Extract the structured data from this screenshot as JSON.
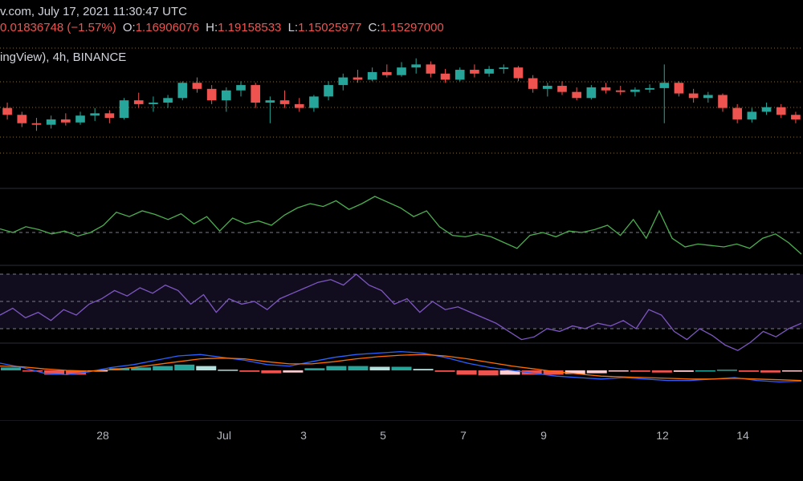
{
  "header": {
    "line1": "v.com, July 17, 2021 11:30:47 UTC",
    "change": "0.01836748 (−1.57%)",
    "o_label": "O:",
    "o_value": "1.16906076",
    "h_label": "H:",
    "h_value": "1.19158533",
    "l_label": "L:",
    "l_value": "1.15025977",
    "c_label": "C:",
    "c_value": "1.15297000",
    "series_info": "ingView), 4h, BINANCE"
  },
  "colors": {
    "background": "#000000",
    "up": "#26a69a",
    "down": "#ef5350",
    "cmf": "#4caf50",
    "rsi": "#7e57c2",
    "rsi_band": "#110d1f",
    "macd": "#2962ff",
    "signal": "#ff6d00",
    "hist_light": "#b2dfdb",
    "hist_pink": "#ffcdd2",
    "price_levels": "#8a6d2a"
  },
  "chart_data": [
    {
      "type": "candlestick",
      "x_ticks": [
        "28",
        "Jul",
        "3",
        "5",
        "7",
        "9",
        "12",
        "14"
      ],
      "price_level_lines": "dotted horizontal levels",
      "candles_sampled": [
        {
          "o": 1.205,
          "h": 1.212,
          "l": 1.19,
          "c": 1.196
        },
        {
          "o": 1.196,
          "h": 1.2,
          "l": 1.18,
          "c": 1.185
        },
        {
          "o": 1.185,
          "h": 1.192,
          "l": 1.175,
          "c": 1.183
        },
        {
          "o": 1.183,
          "h": 1.195,
          "l": 1.178,
          "c": 1.19
        },
        {
          "o": 1.19,
          "h": 1.198,
          "l": 1.182,
          "c": 1.186
        },
        {
          "o": 1.186,
          "h": 1.2,
          "l": 1.183,
          "c": 1.195
        },
        {
          "o": 1.195,
          "h": 1.205,
          "l": 1.188,
          "c": 1.198
        },
        {
          "o": 1.198,
          "h": 1.202,
          "l": 1.185,
          "c": 1.192
        },
        {
          "o": 1.192,
          "h": 1.218,
          "l": 1.19,
          "c": 1.215
        },
        {
          "o": 1.215,
          "h": 1.225,
          "l": 1.205,
          "c": 1.21
        },
        {
          "o": 1.21,
          "h": 1.22,
          "l": 1.2,
          "c": 1.212
        },
        {
          "o": 1.212,
          "h": 1.222,
          "l": 1.205,
          "c": 1.218
        },
        {
          "o": 1.218,
          "h": 1.24,
          "l": 1.215,
          "c": 1.238
        },
        {
          "o": 1.238,
          "h": 1.245,
          "l": 1.225,
          "c": 1.23
        },
        {
          "o": 1.23,
          "h": 1.235,
          "l": 1.21,
          "c": 1.215
        },
        {
          "o": 1.215,
          "h": 1.232,
          "l": 1.2,
          "c": 1.228
        },
        {
          "o": 1.228,
          "h": 1.24,
          "l": 1.22,
          "c": 1.235
        },
        {
          "o": 1.235,
          "h": 1.238,
          "l": 1.205,
          "c": 1.212
        },
        {
          "o": 1.212,
          "h": 1.22,
          "l": 1.185,
          "c": 1.215
        },
        {
          "o": 1.215,
          "h": 1.228,
          "l": 1.205,
          "c": 1.21
        },
        {
          "o": 1.21,
          "h": 1.218,
          "l": 1.2,
          "c": 1.205
        },
        {
          "o": 1.205,
          "h": 1.222,
          "l": 1.2,
          "c": 1.22
        },
        {
          "o": 1.22,
          "h": 1.24,
          "l": 1.215,
          "c": 1.235
        },
        {
          "o": 1.235,
          "h": 1.25,
          "l": 1.228,
          "c": 1.245
        },
        {
          "o": 1.245,
          "h": 1.255,
          "l": 1.238,
          "c": 1.242
        },
        {
          "o": 1.242,
          "h": 1.258,
          "l": 1.24,
          "c": 1.252
        },
        {
          "o": 1.252,
          "h": 1.262,
          "l": 1.245,
          "c": 1.248
        },
        {
          "o": 1.248,
          "h": 1.265,
          "l": 1.246,
          "c": 1.258
        },
        {
          "o": 1.258,
          "h": 1.27,
          "l": 1.25,
          "c": 1.262
        },
        {
          "o": 1.262,
          "h": 1.266,
          "l": 1.245,
          "c": 1.25
        },
        {
          "o": 1.25,
          "h": 1.256,
          "l": 1.238,
          "c": 1.242
        },
        {
          "o": 1.242,
          "h": 1.258,
          "l": 1.24,
          "c": 1.255
        },
        {
          "o": 1.255,
          "h": 1.262,
          "l": 1.245,
          "c": 1.25
        },
        {
          "o": 1.25,
          "h": 1.26,
          "l": 1.246,
          "c": 1.256
        },
        {
          "o": 1.256,
          "h": 1.262,
          "l": 1.25,
          "c": 1.258
        },
        {
          "o": 1.258,
          "h": 1.26,
          "l": 1.24,
          "c": 1.244
        },
        {
          "o": 1.244,
          "h": 1.248,
          "l": 1.225,
          "c": 1.23
        },
        {
          "o": 1.23,
          "h": 1.238,
          "l": 1.22,
          "c": 1.234
        },
        {
          "o": 1.234,
          "h": 1.24,
          "l": 1.222,
          "c": 1.226
        },
        {
          "o": 1.226,
          "h": 1.232,
          "l": 1.215,
          "c": 1.218
        },
        {
          "o": 1.218,
          "h": 1.235,
          "l": 1.216,
          "c": 1.232
        },
        {
          "o": 1.232,
          "h": 1.238,
          "l": 1.224,
          "c": 1.228
        },
        {
          "o": 1.228,
          "h": 1.234,
          "l": 1.222,
          "c": 1.226
        },
        {
          "o": 1.226,
          "h": 1.232,
          "l": 1.22,
          "c": 1.229
        },
        {
          "o": 1.229,
          "h": 1.236,
          "l": 1.225,
          "c": 1.231
        },
        {
          "o": 1.231,
          "h": 1.262,
          "l": 1.185,
          "c": 1.238
        },
        {
          "o": 1.238,
          "h": 1.24,
          "l": 1.22,
          "c": 1.224
        },
        {
          "o": 1.224,
          "h": 1.23,
          "l": 1.212,
          "c": 1.218
        },
        {
          "o": 1.218,
          "h": 1.226,
          "l": 1.212,
          "c": 1.222
        },
        {
          "o": 1.222,
          "h": 1.224,
          "l": 1.2,
          "c": 1.205
        },
        {
          "o": 1.205,
          "h": 1.21,
          "l": 1.185,
          "c": 1.19
        },
        {
          "o": 1.19,
          "h": 1.205,
          "l": 1.186,
          "c": 1.2
        },
        {
          "o": 1.2,
          "h": 1.212,
          "l": 1.196,
          "c": 1.206
        },
        {
          "o": 1.206,
          "h": 1.21,
          "l": 1.192,
          "c": 1.196
        },
        {
          "o": 1.196,
          "h": 1.2,
          "l": 1.185,
          "c": 1.19
        }
      ]
    },
    {
      "type": "line",
      "series": [
        {
          "values": [
            0.05,
            0.0,
            0.08,
            0.04,
            -0.02,
            0.02,
            -0.05,
            0.0,
            0.1,
            0.28,
            0.22,
            0.3,
            0.25,
            0.18,
            0.26,
            0.12,
            0.22,
            0.02,
            0.2,
            0.12,
            0.16,
            0.1,
            0.24,
            0.34,
            0.4,
            0.36,
            0.44,
            0.32,
            0.4,
            0.5,
            0.42,
            0.34,
            0.22,
            0.3,
            0.08,
            -0.04,
            -0.06,
            -0.02,
            -0.06,
            -0.14,
            -0.22,
            -0.04,
            0.0,
            -0.06,
            0.02,
            0.0,
            0.04,
            0.1,
            -0.04,
            0.18,
            -0.08,
            0.3,
            -0.08,
            -0.2,
            -0.16,
            -0.18,
            -0.2,
            -0.16,
            -0.22,
            -0.08,
            -0.02,
            -0.14,
            -0.3
          ]
        }
      ],
      "guide_line": 0
    },
    {
      "type": "line",
      "series": [
        {
          "values": [
            40,
            45,
            38,
            42,
            36,
            44,
            40,
            48,
            52,
            58,
            54,
            60,
            56,
            62,
            58,
            48,
            55,
            42,
            52,
            48,
            50,
            44,
            52,
            56,
            60,
            64,
            66,
            62,
            70,
            62,
            58,
            48,
            52,
            42,
            50,
            44,
            46,
            42,
            38,
            34,
            28,
            22,
            24,
            30,
            28,
            32,
            30,
            34,
            32,
            36,
            30,
            44,
            40,
            28,
            22,
            30,
            25,
            18,
            14,
            20,
            28,
            24,
            30,
            34
          ]
        }
      ],
      "guide_lines": [
        70,
        50,
        30
      ]
    },
    {
      "type": "line",
      "series": [
        {
          "values": [
            0.01,
            0.004,
            -0.004,
            -0.006,
            -0.002,
            0.004,
            0.008,
            0.014,
            0.02,
            0.022,
            0.018,
            0.014,
            0.008,
            0.006,
            0.012,
            0.018,
            0.022,
            0.024,
            0.026,
            0.024,
            0.018,
            0.01,
            0.004,
            0.0,
            -0.004,
            -0.008,
            -0.01,
            -0.012,
            -0.01,
            -0.012,
            -0.014,
            -0.014,
            -0.012,
            -0.01,
            -0.014,
            -0.016,
            -0.015
          ]
        },
        {
          "values": [
            0.006,
            0.005,
            0.002,
            0.0,
            -0.001,
            0.001,
            0.004,
            0.008,
            0.012,
            0.016,
            0.017,
            0.016,
            0.012,
            0.009,
            0.009,
            0.012,
            0.016,
            0.019,
            0.021,
            0.022,
            0.02,
            0.016,
            0.011,
            0.006,
            0.002,
            -0.002,
            -0.005,
            -0.008,
            -0.009,
            -0.01,
            -0.011,
            -0.012,
            -0.012,
            -0.011,
            -0.012,
            -0.013,
            -0.014
          ]
        }
      ],
      "histogram": [
        0.004,
        -0.001,
        -0.006,
        -0.006,
        -0.001,
        0.003,
        0.004,
        0.006,
        0.008,
        0.006,
        0.001,
        -0.002,
        -0.004,
        -0.003,
        0.003,
        0.006,
        0.006,
        0.005,
        0.005,
        0.002,
        -0.002,
        -0.006,
        -0.007,
        -0.006,
        -0.006,
        -0.006,
        -0.005,
        -0.004,
        -0.001,
        -0.002,
        -0.003,
        -0.002,
        0.0,
        0.001,
        -0.002,
        -0.003,
        -0.001
      ]
    }
  ]
}
